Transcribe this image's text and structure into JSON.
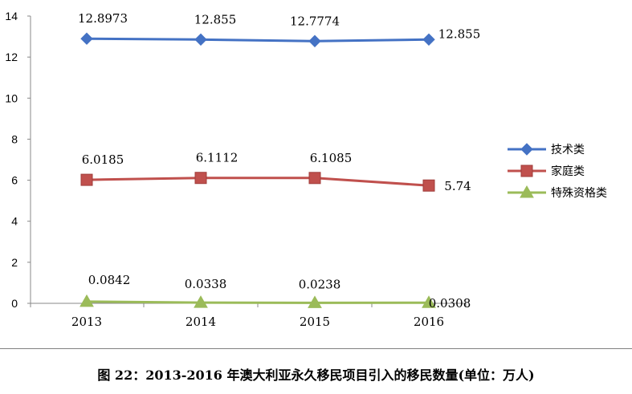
{
  "chart_data": {
    "type": "line",
    "categories": [
      "2013",
      "2014",
      "2015",
      "2016"
    ],
    "ylim": [
      0,
      14
    ],
    "yticks": [
      "0",
      "2",
      "4",
      "6",
      "8",
      "10",
      "12",
      "14"
    ],
    "grid": false,
    "legend_position": "right",
    "series": [
      {
        "name": "技术类",
        "color": "#4472c4",
        "marker": "diamond",
        "values": [
          12.8973,
          12.855,
          12.7774,
          12.855
        ],
        "labels": [
          "12.8973",
          "12.855",
          "12.7774",
          "12.855"
        ]
      },
      {
        "name": "家庭类",
        "color": "#c0504d",
        "marker": "square",
        "values": [
          6.0185,
          6.1112,
          6.1085,
          5.74
        ],
        "labels": [
          "6.0185",
          "6.1112",
          "6.1085",
          "5.74"
        ]
      },
      {
        "name": "特殊资格类",
        "color": "#9bbb59",
        "marker": "triangle",
        "values": [
          0.0842,
          0.0338,
          0.0238,
          0.0308
        ],
        "labels": [
          "0.0842",
          "0.0338",
          "0.0238",
          "0.0308"
        ]
      }
    ]
  },
  "caption": "图 22：2013-2016 年澳大利亚永久移民项目引入的移民数量(单位：万人)"
}
